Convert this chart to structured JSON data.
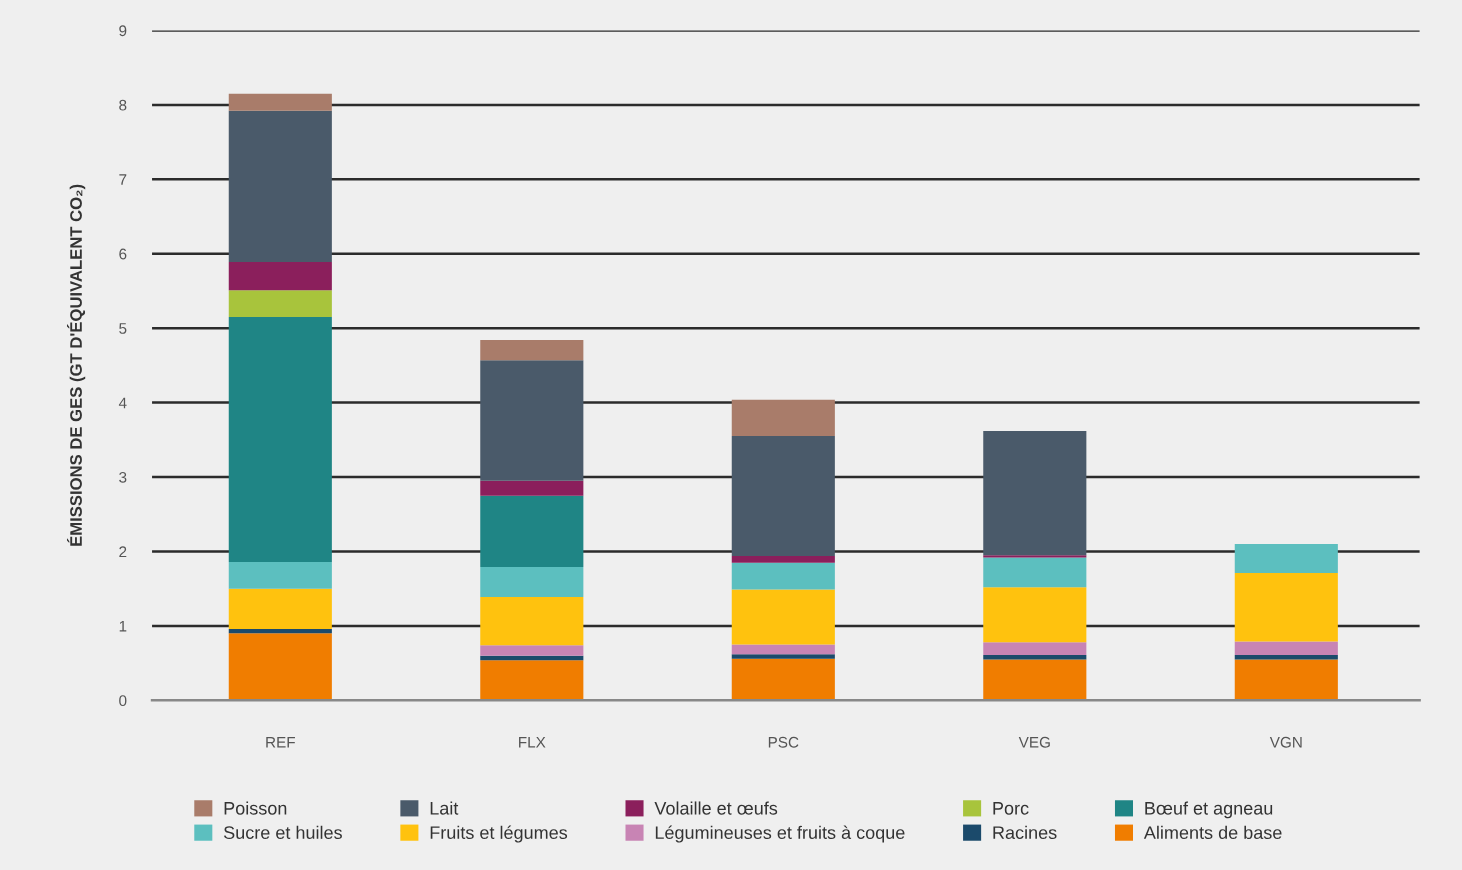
{
  "chart_data": {
    "type": "bar",
    "stacked": true,
    "ylabel": "ÉMISSIONS DE GES (GT D'ÉQUIVALENT CO₂)",
    "categories": [
      "REF",
      "FLX",
      "PSC",
      "VEG",
      "VGN"
    ],
    "series": [
      {
        "name": "Aliments de base",
        "color": "#f07d00",
        "values": [
          0.9,
          0.54,
          0.56,
          0.55,
          0.55
        ]
      },
      {
        "name": "Racines",
        "color": "#1b4a6b",
        "values": [
          0.06,
          0.06,
          0.06,
          0.06,
          0.06
        ]
      },
      {
        "name": "Légumineuses et fruits à coque",
        "color": "#c884b4",
        "values": [
          0,
          0.14,
          0.13,
          0.17,
          0.18
        ]
      },
      {
        "name": "Fruits et légumes",
        "color": "#ffc20e",
        "values": [
          0.54,
          0.65,
          0.74,
          0.74,
          0.92
        ]
      },
      {
        "name": "Sucre et huiles",
        "color": "#5cbfbf",
        "values": [
          0.36,
          0.4,
          0.36,
          0.4,
          0.39
        ]
      },
      {
        "name": "Bœuf et agneau",
        "color": "#1f8585",
        "values": [
          3.29,
          0.96,
          0,
          0,
          0
        ]
      },
      {
        "name": "Porc",
        "color": "#a8c43c",
        "values": [
          0.36,
          0,
          0,
          0,
          0
        ]
      },
      {
        "name": "Volaille et œufs",
        "color": "#8b1f5c",
        "values": [
          0.38,
          0.2,
          0.09,
          0.03,
          0
        ]
      },
      {
        "name": "Lait",
        "color": "#4a5a6a",
        "values": [
          2.03,
          1.62,
          1.61,
          1.67,
          0
        ]
      },
      {
        "name": "Poisson",
        "color": "#a97c6a",
        "values": [
          0.23,
          0.27,
          0.49,
          0,
          0
        ]
      }
    ],
    "ylim": [
      0,
      9
    ],
    "yticks": [
      0,
      1,
      2,
      3,
      4,
      5,
      6,
      7,
      8,
      9
    ],
    "grid": "y",
    "legend": "bottom"
  }
}
